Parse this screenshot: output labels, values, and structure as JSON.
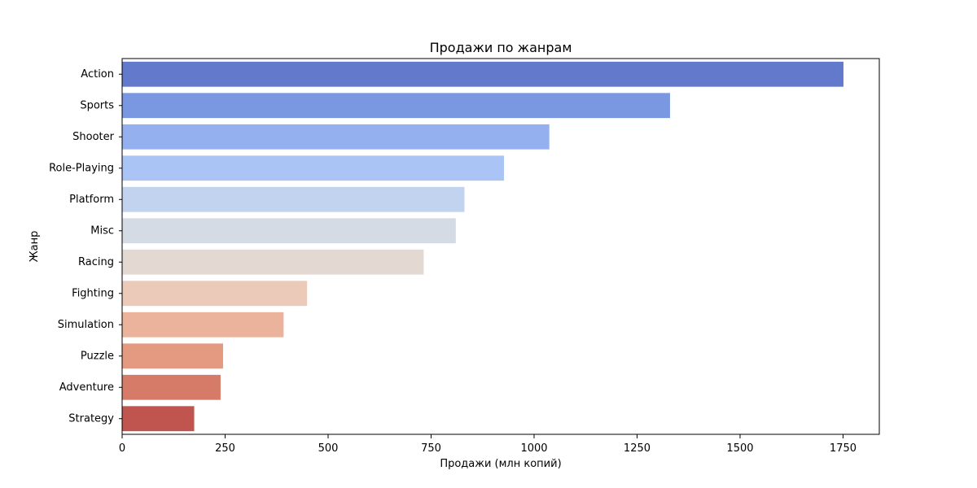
{
  "chart_data": {
    "type": "bar",
    "orientation": "horizontal",
    "title": "Продажи по жанрам",
    "xlabel": "Продажи (млн копий)",
    "ylabel": "Жанр",
    "xlim": [
      0,
      1838
    ],
    "xticks": [
      0,
      250,
      500,
      750,
      1000,
      1250,
      1500,
      1750
    ],
    "grid": false,
    "categories": [
      "Action",
      "Sports",
      "Shooter",
      "Role-Playing",
      "Platform",
      "Misc",
      "Racing",
      "Fighting",
      "Simulation",
      "Puzzle",
      "Adventure",
      "Strategy"
    ],
    "values": [
      1751,
      1330,
      1037,
      927,
      831,
      810,
      732,
      449,
      392,
      245,
      239,
      175
    ],
    "colors": [
      "#6279cc",
      "#7a97e2",
      "#94b0ee",
      "#abc4f6",
      "#c2d3f0",
      "#d5dbe5",
      "#e4d8d3",
      "#eccab9",
      "#ebb39c",
      "#e39a80",
      "#d67b67",
      "#c0544e"
    ]
  }
}
